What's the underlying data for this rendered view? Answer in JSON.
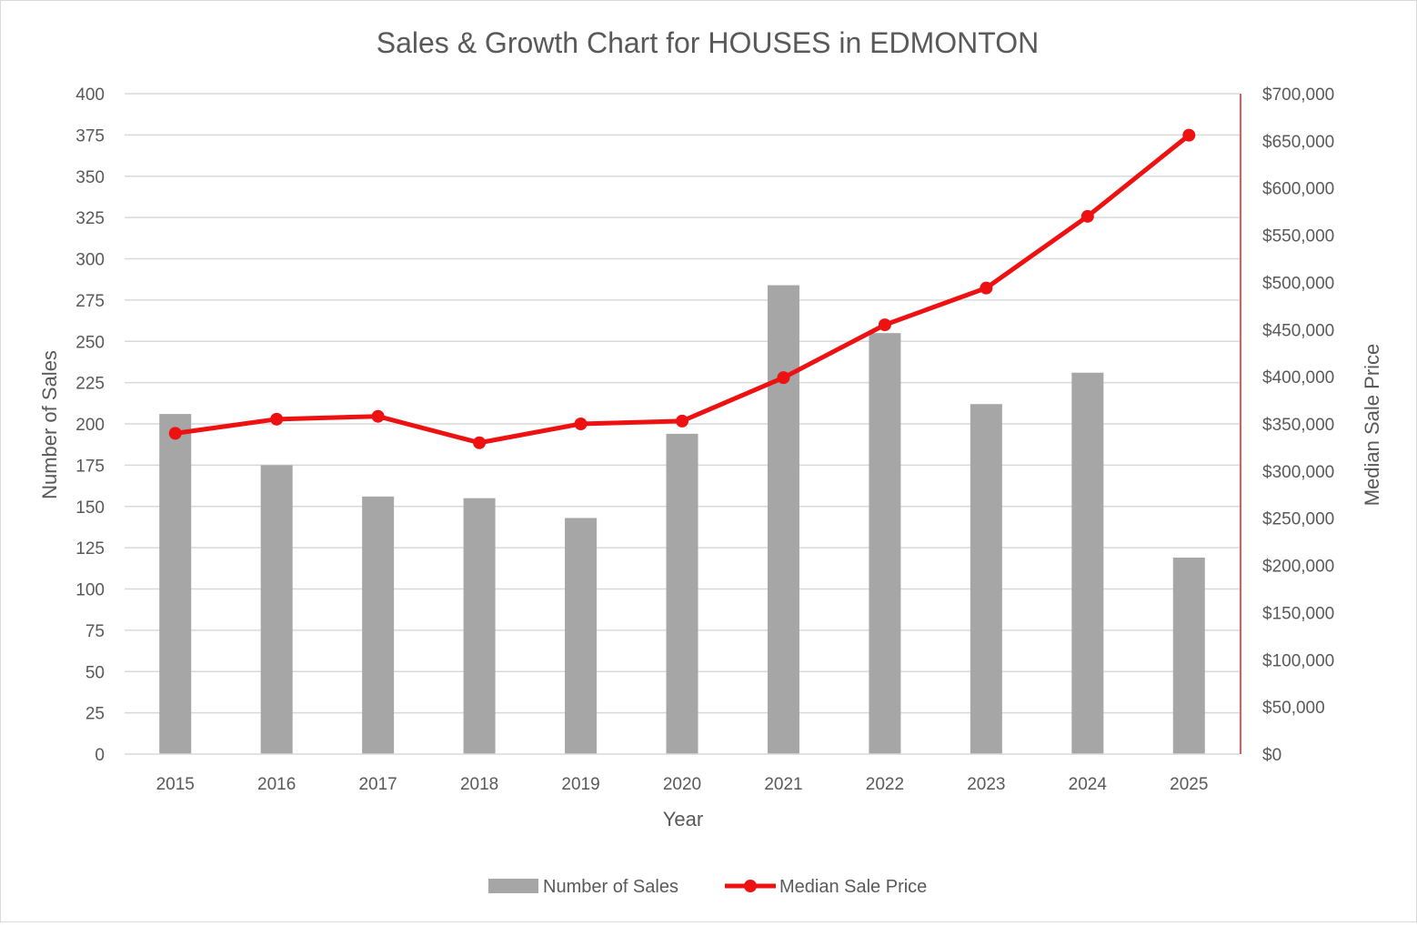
{
  "chart_data": {
    "type": "bar+line",
    "title": "Sales & Growth Chart for HOUSES in EDMONTON",
    "xlabel": "Year",
    "ylabel": "Number of Sales",
    "y2label": "Median Sale Price",
    "categories": [
      "2015",
      "2016",
      "2017",
      "2018",
      "2019",
      "2020",
      "2021",
      "2022",
      "2023",
      "2024",
      "2025"
    ],
    "ylim": [
      0,
      400
    ],
    "y_ticks": [
      0,
      25,
      50,
      75,
      100,
      125,
      150,
      175,
      200,
      225,
      250,
      275,
      300,
      325,
      350,
      375,
      400
    ],
    "y2lim": [
      0,
      700000
    ],
    "y2_ticks": [
      0,
      50000,
      100000,
      150000,
      200000,
      250000,
      300000,
      350000,
      400000,
      450000,
      500000,
      550000,
      600000,
      650000,
      700000
    ],
    "y2_tick_labels": [
      "$0",
      "$50,000",
      "$100,000",
      "$150,000",
      "$200,000",
      "$250,000",
      "$300,000",
      "$350,000",
      "$400,000",
      "$450,000",
      "$500,000",
      "$550,000",
      "$600,000",
      "$650,000",
      "$700,000"
    ],
    "grid": true,
    "legend_position": "bottom",
    "series": [
      {
        "name": "Number of Sales",
        "type": "bar",
        "axis": "left",
        "color": "#a6a6a6",
        "values": [
          206,
          175,
          156,
          155,
          143,
          194,
          284,
          255,
          212,
          231,
          119
        ]
      },
      {
        "name": "Median Sale Price",
        "type": "line",
        "axis": "right",
        "color": "#ee1111",
        "values": [
          340000,
          355000,
          358000,
          330000,
          350000,
          353000,
          399000,
          455000,
          494000,
          570000,
          656000
        ]
      }
    ]
  }
}
